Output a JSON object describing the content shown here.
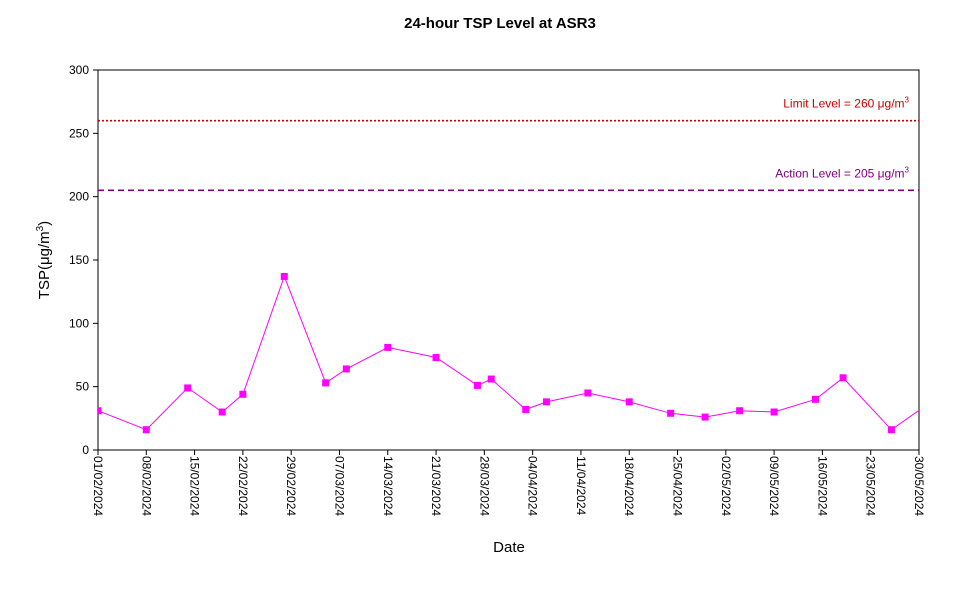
{
  "chart_data": {
    "type": "line",
    "title": "24-hour TSP Level at ASR3",
    "xlabel": "Date",
    "ylabel": "TSP(μg/m3)",
    "ylim": [
      0,
      300
    ],
    "yticks": [
      0,
      50,
      100,
      150,
      200,
      250,
      300
    ],
    "xlim": [
      "2024-02-01",
      "2024-05-30"
    ],
    "x_tick_labels": [
      "01/02/2024",
      "08/02/2024",
      "15/02/2024",
      "22/02/2024",
      "29/02/2024",
      "07/03/2024",
      "14/03/2024",
      "21/03/2024",
      "28/03/2024",
      "04/04/2024",
      "11/04/2024",
      "18/04/2024",
      "25/04/2024",
      "02/05/2024",
      "09/05/2024",
      "16/05/2024",
      "23/05/2024",
      "30/05/2024"
    ],
    "grid": false,
    "series": [
      {
        "name": "",
        "color": "#ff00ff",
        "marker": "square",
        "points": [
          {
            "x": "2024-01-31",
            "y": 37
          },
          {
            "x": "2024-02-01",
            "y": 31
          },
          {
            "x": "2024-02-08",
            "y": 16
          },
          {
            "x": "2024-02-14",
            "y": 49
          },
          {
            "x": "2024-02-19",
            "y": 30
          },
          {
            "x": "2024-02-22",
            "y": 44
          },
          {
            "x": "2024-02-28",
            "y": 137
          },
          {
            "x": "2024-03-05",
            "y": 53
          },
          {
            "x": "2024-03-08",
            "y": 64
          },
          {
            "x": "2024-03-14",
            "y": 81
          },
          {
            "x": "2024-03-21",
            "y": 73
          },
          {
            "x": "2024-03-27",
            "y": 51
          },
          {
            "x": "2024-03-29",
            "y": 56
          },
          {
            "x": "2024-04-03",
            "y": 32
          },
          {
            "x": "2024-04-06",
            "y": 38
          },
          {
            "x": "2024-04-12",
            "y": 45
          },
          {
            "x": "2024-04-18",
            "y": 38
          },
          {
            "x": "2024-04-24",
            "y": 29
          },
          {
            "x": "2024-04-29",
            "y": 26
          },
          {
            "x": "2024-05-04",
            "y": 31
          },
          {
            "x": "2024-05-09",
            "y": 30
          },
          {
            "x": "2024-05-15",
            "y": 40
          },
          {
            "x": "2024-05-19",
            "y": 57
          },
          {
            "x": "2024-05-26",
            "y": 16
          },
          {
            "x": "2024-06-01",
            "y": 39
          }
        ]
      }
    ],
    "reference_lines": [
      {
        "label": "Limit Level  = 260 μg/m3",
        "value": 260,
        "color": "#cc0000",
        "style": "dotted"
      },
      {
        "label": "Action Level  = 205 μg/m3",
        "value": 205,
        "color": "#800080",
        "style": "dashed"
      }
    ],
    "colors": {
      "series": "#ff00ff",
      "limit": "#cc0000",
      "action": "#800080",
      "axis": "#000000"
    }
  }
}
